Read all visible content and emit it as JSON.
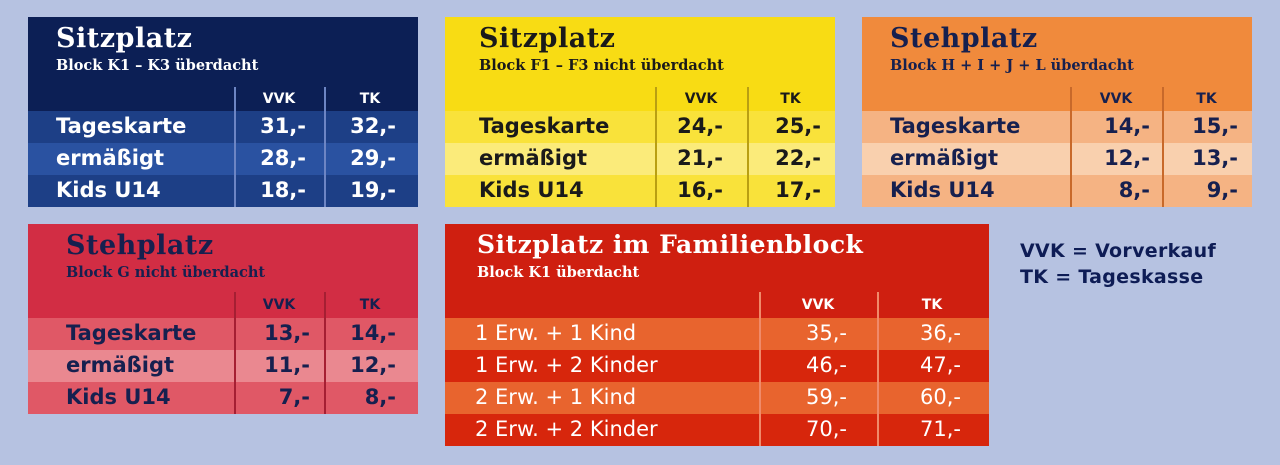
{
  "cards": {
    "sitz_k": {
      "title": "Sitzplatz",
      "subtitle": "Block K1 – K3  überdacht",
      "col_vvk": "VVK",
      "col_tk": "TK",
      "rows": [
        {
          "label": "Tageskarte",
          "vvk": "31,-",
          "tk": "32,-"
        },
        {
          "label": "ermäßigt",
          "vvk": "28,-",
          "tk": "29,-"
        },
        {
          "label": "Kids U14",
          "vvk": "18,-",
          "tk": "19,-"
        }
      ]
    },
    "sitz_f": {
      "title": "Sitzplatz",
      "subtitle": "Block F1 – F3  nicht überdacht",
      "col_vvk": "VVK",
      "col_tk": "TK",
      "rows": [
        {
          "label": "Tageskarte",
          "vvk": "24,-",
          "tk": "25,-"
        },
        {
          "label": "ermäßigt",
          "vvk": "21,-",
          "tk": "22,-"
        },
        {
          "label": "Kids U14",
          "vvk": "16,-",
          "tk": "17,-"
        }
      ]
    },
    "steh_h": {
      "title": "Stehplatz",
      "subtitle": "Block H + I + J + L  überdacht",
      "col_vvk": "VVK",
      "col_tk": "TK",
      "rows": [
        {
          "label": "Tageskarte",
          "vvk": "14,-",
          "tk": "15,-"
        },
        {
          "label": "ermäßigt",
          "vvk": "12,-",
          "tk": "13,-"
        },
        {
          "label": "Kids U14",
          "vvk": "8,-",
          "tk": "9,-"
        }
      ]
    },
    "steh_g": {
      "title": "Stehplatz",
      "subtitle": "Block G  nicht überdacht",
      "col_vvk": "VVK",
      "col_tk": "TK",
      "rows": [
        {
          "label": "Tageskarte",
          "vvk": "13,-",
          "tk": "14,-"
        },
        {
          "label": "ermäßigt",
          "vvk": "11,-",
          "tk": "12,-"
        },
        {
          "label": "Kids U14",
          "vvk": "7,-",
          "tk": "8,-"
        }
      ]
    },
    "familie": {
      "title": "Sitzplatz im Familienblock",
      "subtitle": "Block K1 überdacht",
      "col_vvk": "VVK",
      "col_tk": "TK",
      "rows": [
        {
          "label": "1 Erw. + 1 Kind",
          "vvk": "35,-",
          "tk": "36,-"
        },
        {
          "label": "1 Erw. + 2 Kinder",
          "vvk": "46,-",
          "tk": "47,-"
        },
        {
          "label": "2 Erw. + 1 Kind",
          "vvk": "59,-",
          "tk": "60,-"
        },
        {
          "label": "2 Erw. + 2 Kinder",
          "vvk": "70,-",
          "tk": "71,-"
        }
      ]
    }
  },
  "legend": {
    "vvk": "VVK = Vorverkauf",
    "tk": "TK = Tageskasse"
  },
  "colors": {
    "background": "#b6c2e1",
    "navy_head": "#0c1f55",
    "yellow_head": "#f8dc14",
    "orange_head": "#f08a3c",
    "crimson_head": "#d22d44",
    "red_head": "#cf1f10"
  }
}
